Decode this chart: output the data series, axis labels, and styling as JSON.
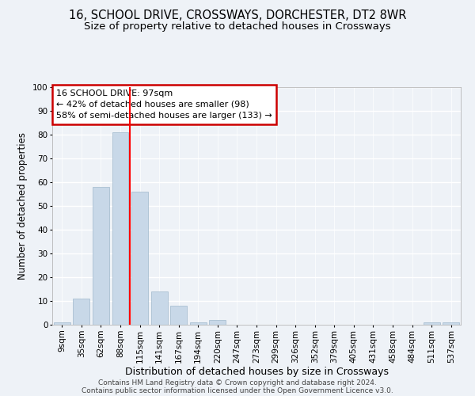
{
  "title1": "16, SCHOOL DRIVE, CROSSWAYS, DORCHESTER, DT2 8WR",
  "title2": "Size of property relative to detached houses in Crossways",
  "xlabel": "Distribution of detached houses by size in Crossways",
  "ylabel": "Number of detached properties",
  "categories": [
    "9sqm",
    "35sqm",
    "62sqm",
    "88sqm",
    "115sqm",
    "141sqm",
    "167sqm",
    "194sqm",
    "220sqm",
    "247sqm",
    "273sqm",
    "299sqm",
    "326sqm",
    "352sqm",
    "379sqm",
    "405sqm",
    "431sqm",
    "458sqm",
    "484sqm",
    "511sqm",
    "537sqm"
  ],
  "values": [
    1,
    11,
    58,
    81,
    56,
    14,
    8,
    1,
    2,
    0,
    0,
    0,
    0,
    0,
    0,
    0,
    0,
    0,
    0,
    1,
    1
  ],
  "bar_color": "#c8d8e8",
  "bar_edge_color": "#a0b8cc",
  "bar_width": 0.85,
  "ylim": [
    0,
    100
  ],
  "yticks": [
    0,
    10,
    20,
    30,
    40,
    50,
    60,
    70,
    80,
    90,
    100
  ],
  "red_line_x": 3.5,
  "annotation_text": "16 SCHOOL DRIVE: 97sqm\n← 42% of detached houses are smaller (98)\n58% of semi-detached houses are larger (133) →",
  "annotation_box_color": "#ffffff",
  "annotation_box_edge": "#cc0000",
  "footer1": "Contains HM Land Registry data © Crown copyright and database right 2024.",
  "footer2": "Contains public sector information licensed under the Open Government Licence v3.0.",
  "background_color": "#eef2f7",
  "grid_color": "#ffffff",
  "title1_fontsize": 10.5,
  "title2_fontsize": 9.5,
  "tick_fontsize": 7.5,
  "ylabel_fontsize": 8.5,
  "xlabel_fontsize": 9,
  "annotation_fontsize": 8,
  "footer_fontsize": 6.5
}
